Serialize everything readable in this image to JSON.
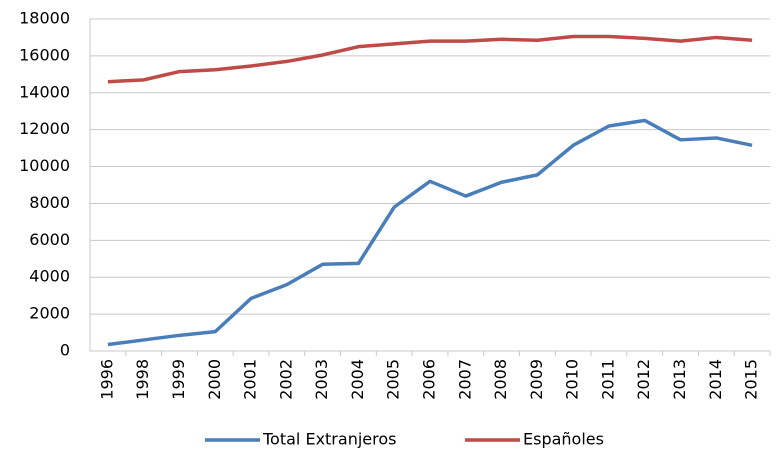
{
  "chart_data": {
    "type": "line",
    "categories": [
      "1996",
      "1998",
      "1999",
      "2000",
      "2001",
      "2002",
      "2003",
      "2004",
      "2005",
      "2006",
      "2007",
      "2008",
      "2009",
      "2010",
      "2011",
      "2012",
      "2013",
      "2014",
      "2015"
    ],
    "series": [
      {
        "name": "Total Extranjeros",
        "color": "#4a7ebb",
        "values": [
          350,
          600,
          850,
          1050,
          2850,
          3600,
          4700,
          4750,
          7800,
          9200,
          8400,
          9150,
          9550,
          11150,
          12200,
          12500,
          11450,
          11550,
          11150
        ]
      },
      {
        "name": "Españoles",
        "color": "#be4b48",
        "values": [
          14600,
          14700,
          15150,
          15250,
          15450,
          15700,
          16050,
          16500,
          16650,
          16800,
          16800,
          16900,
          16850,
          17050,
          17050,
          16950,
          16800,
          17000,
          16850
        ]
      }
    ],
    "ylim": [
      0,
      18000
    ],
    "yticks": [
      0,
      2000,
      4000,
      6000,
      8000,
      10000,
      12000,
      14000,
      16000,
      18000
    ],
    "grid": true,
    "legend": "bottom"
  }
}
